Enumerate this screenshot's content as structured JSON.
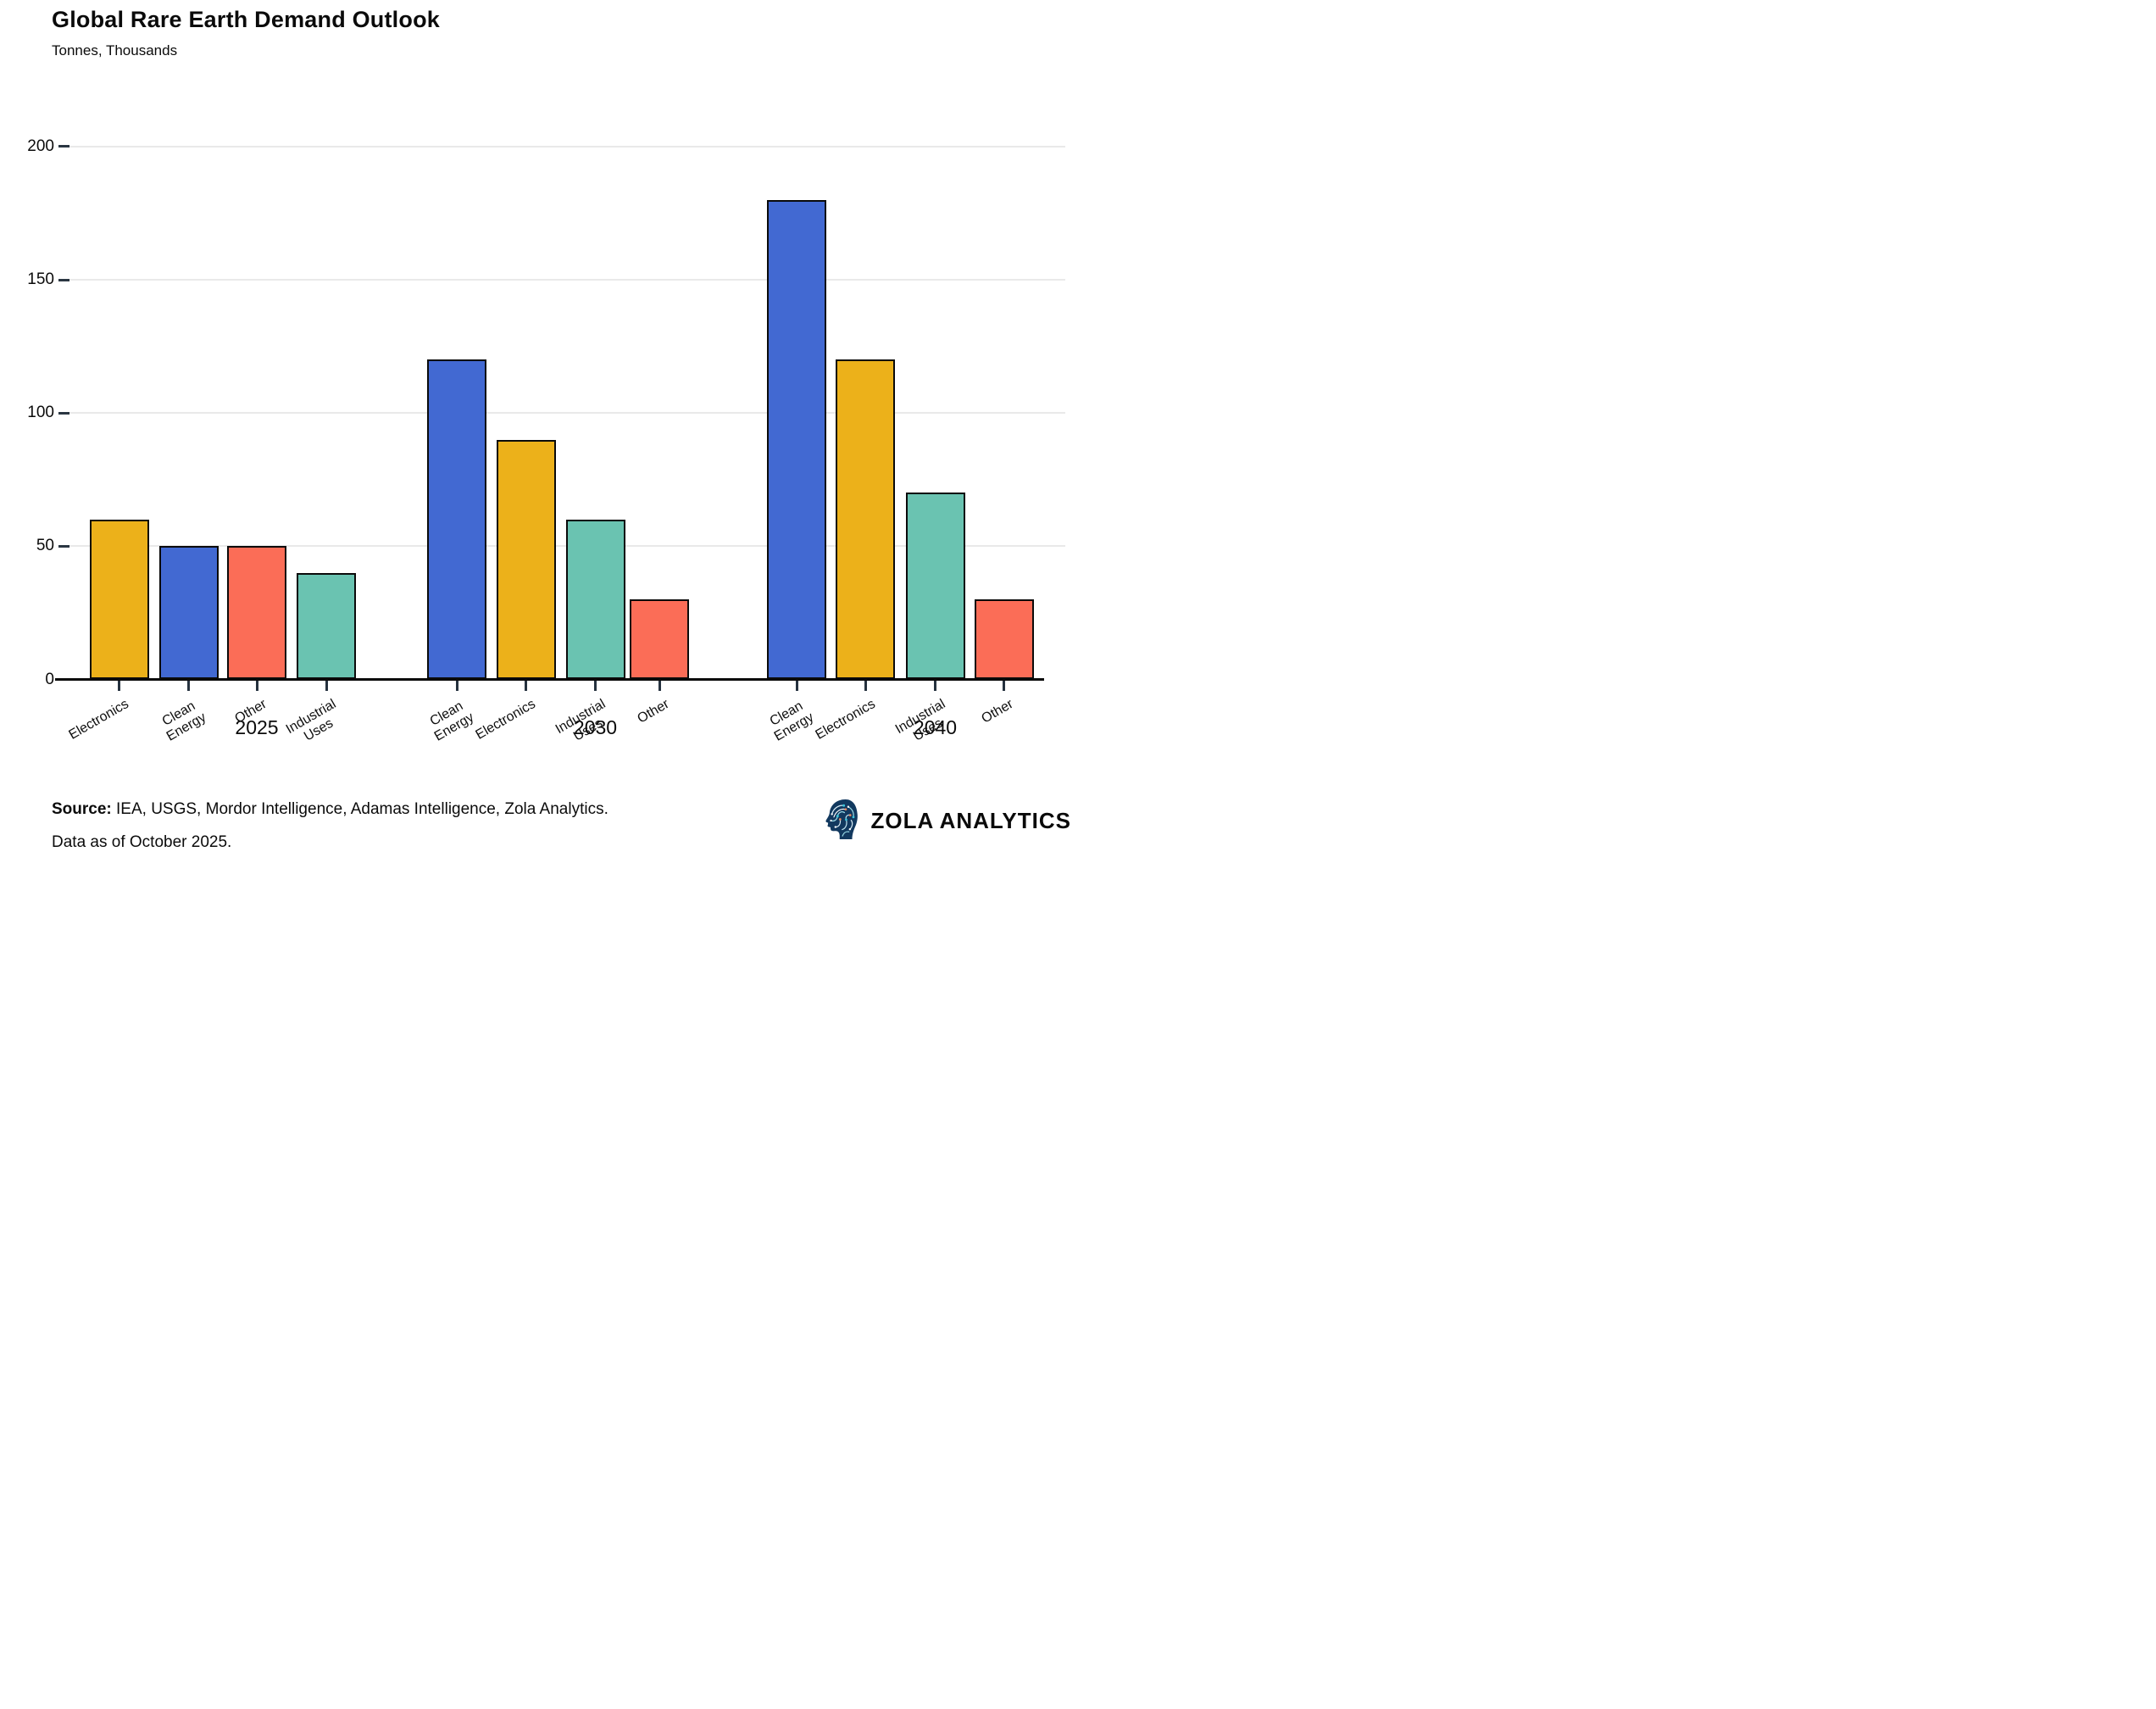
{
  "header": {
    "title": "Global Rare Earth Demand Outlook",
    "subtitle": "Tonnes, Thousands"
  },
  "chart_data": {
    "type": "bar",
    "title": "Global Rare Earth Demand Outlook",
    "subtitle": "Tonnes, Thousands",
    "ylabel": "Tonnes, Thousands",
    "ylim": [
      0,
      210
    ],
    "y_ticks": [
      0,
      50,
      100,
      150,
      200
    ],
    "grid": "horizontal",
    "legend": "none",
    "palette": {
      "Electronics": "#ECB11A",
      "Clean Energy": "#4269D2",
      "Other": "#FB6D57",
      "Industrial Uses": "#6AC3B1"
    },
    "groups": [
      {
        "year": "2025",
        "bars": [
          {
            "category": "Electronics",
            "label": "Electronics",
            "value": 60
          },
          {
            "category": "Clean Energy",
            "label": "Clean\nEnergy",
            "value": 50
          },
          {
            "category": "Other",
            "label": "Other",
            "value": 50
          },
          {
            "category": "Industrial Uses",
            "label": "Industrial\nUses",
            "value": 40
          }
        ]
      },
      {
        "year": "2030",
        "bars": [
          {
            "category": "Clean Energy",
            "label": "Clean\nEnergy",
            "value": 120
          },
          {
            "category": "Electronics",
            "label": "Electronics",
            "value": 90
          },
          {
            "category": "Industrial Uses",
            "label": "Industrial\nUses",
            "value": 60
          },
          {
            "category": "Other",
            "label": "Other",
            "value": 30
          }
        ]
      },
      {
        "year": "2040",
        "bars": [
          {
            "category": "Clean Energy",
            "label": "Clean\nEnergy",
            "value": 180
          },
          {
            "category": "Electronics",
            "label": "Electronics",
            "value": 120
          },
          {
            "category": "Industrial Uses",
            "label": "Industrial\nUses",
            "value": 70
          },
          {
            "category": "Other",
            "label": "Other",
            "value": 30
          }
        ]
      }
    ]
  },
  "footer": {
    "source_label": "Source:",
    "source_text": " IEA, USGS, Mordor Intelligence, Adamas Intelligence, Zola Analytics.",
    "asof": "Data as of October 2025.",
    "brand": "ZOLA ANALYTICS"
  }
}
